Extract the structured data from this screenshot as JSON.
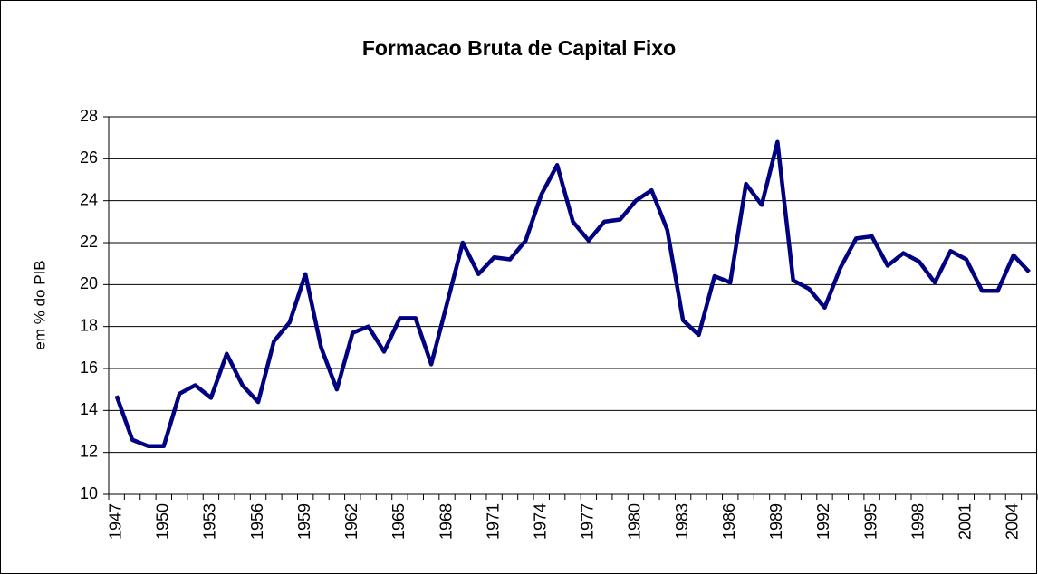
{
  "chart_data": {
    "type": "line",
    "title": "Formacao Bruta de Capital Fixo",
    "y_label": "em % do PIB",
    "categories": [
      "1947",
      null,
      null,
      "1950",
      null,
      null,
      "1953",
      null,
      null,
      "1956",
      null,
      null,
      "1959",
      null,
      null,
      "1962",
      null,
      null,
      "1965",
      null,
      null,
      "1968",
      null,
      null,
      "1971",
      null,
      null,
      "1974",
      null,
      null,
      "1977",
      null,
      null,
      "1980",
      null,
      null,
      "1983",
      null,
      null,
      "1986",
      null,
      null,
      "1989",
      null,
      null,
      "1992",
      null,
      null,
      "1995",
      null,
      null,
      "1998",
      null,
      null,
      "2001",
      null,
      null,
      "2004",
      null
    ],
    "values": [
      14.7,
      12.6,
      12.3,
      12.3,
      14.8,
      15.2,
      14.6,
      16.7,
      15.2,
      14.4,
      17.3,
      18.2,
      20.5,
      17.0,
      15.0,
      17.7,
      18.0,
      16.8,
      18.4,
      18.4,
      16.2,
      19.1,
      22.0,
      20.5,
      21.3,
      21.2,
      22.1,
      24.3,
      25.7,
      23.0,
      22.1,
      23.0,
      23.1,
      24.0,
      24.5,
      22.6,
      18.3,
      17.6,
      20.4,
      20.1,
      24.8,
      23.8,
      26.8,
      20.2,
      19.8,
      18.9,
      20.8,
      22.2,
      22.3,
      20.9,
      21.5,
      21.1,
      20.1,
      21.6,
      21.2,
      19.7,
      19.7,
      21.4,
      20.6
    ],
    "color": "#000080",
    "ylim": [
      10,
      28
    ],
    "yticks": [
      10,
      12,
      14,
      16,
      18,
      20,
      22,
      24,
      26,
      28
    ],
    "grid": true
  }
}
